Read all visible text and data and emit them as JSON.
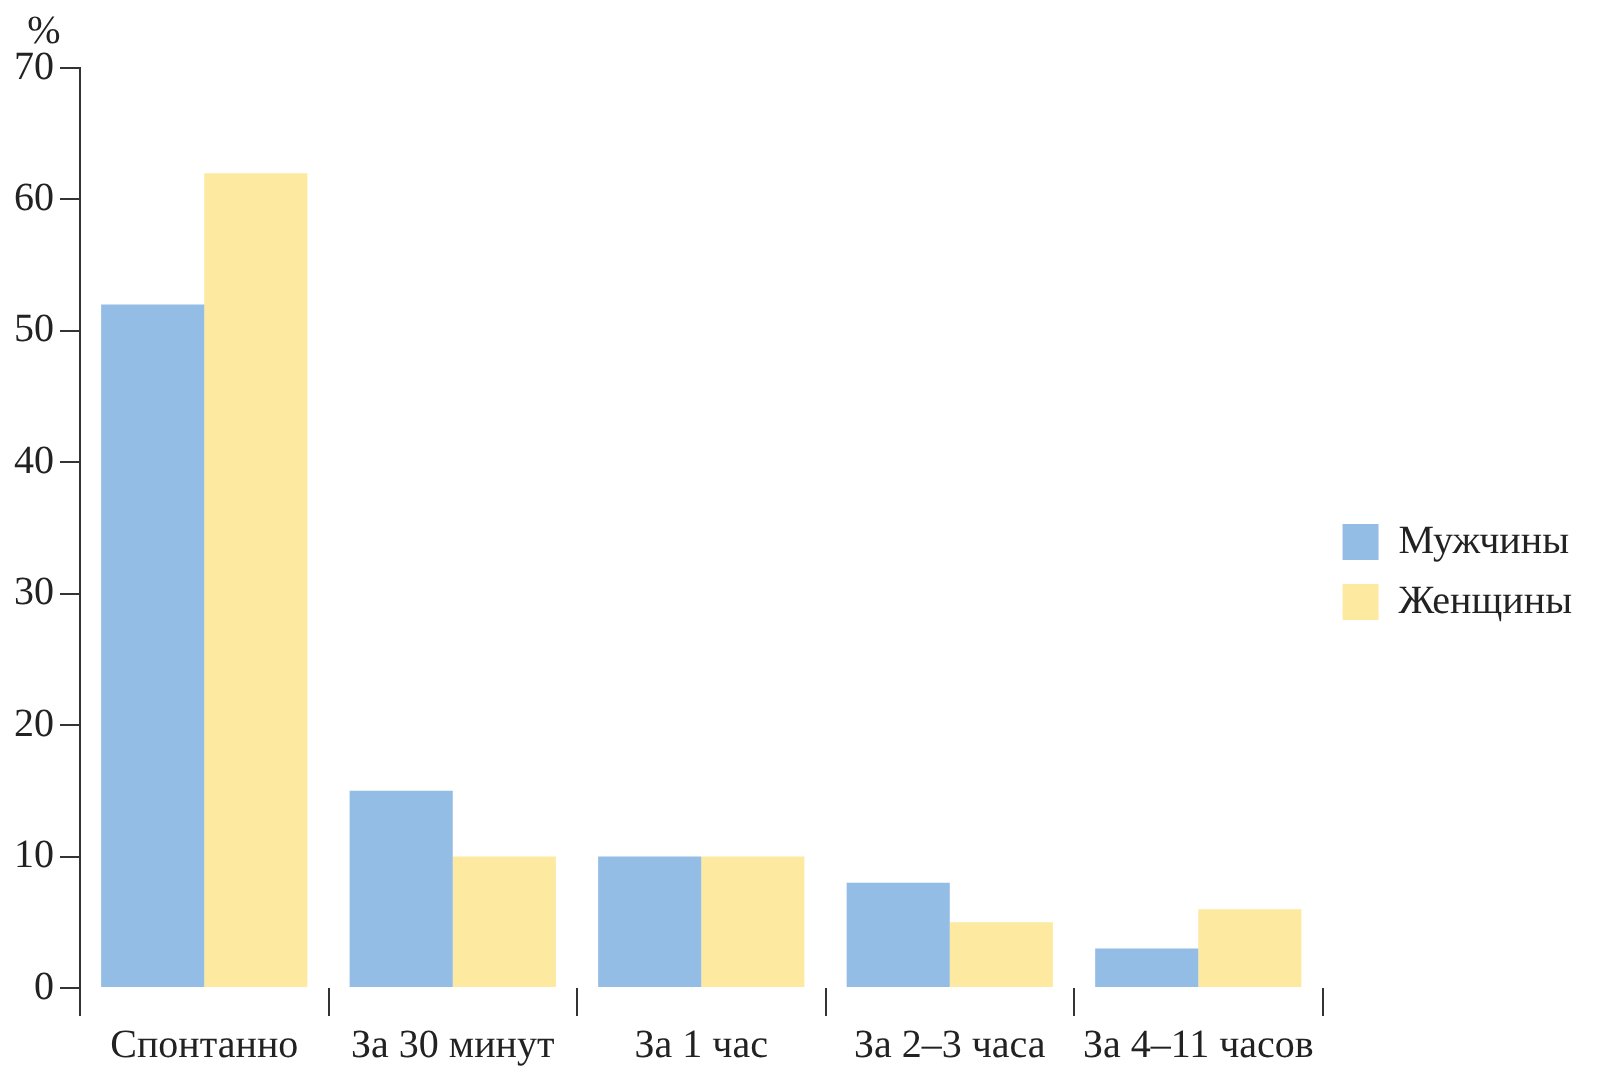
{
  "chart_data": {
    "type": "bar",
    "ylabel": "%",
    "categories": [
      "Спонтанно",
      "За 30 минут",
      "За 1 час",
      "За 2–3 часа",
      "За 4–11 часов"
    ],
    "series": [
      {
        "name": "Мужчины",
        "color": "#94bde6",
        "values": [
          52,
          15,
          10,
          8,
          3
        ]
      },
      {
        "name": "Женщины",
        "color": "#fde9a0",
        "values": [
          62,
          10,
          10,
          5,
          6
        ]
      }
    ],
    "ylim": [
      0,
      70
    ],
    "yticks": [
      0,
      10,
      20,
      30,
      40,
      50,
      60,
      70
    ],
    "grid": false,
    "legend": "right"
  }
}
